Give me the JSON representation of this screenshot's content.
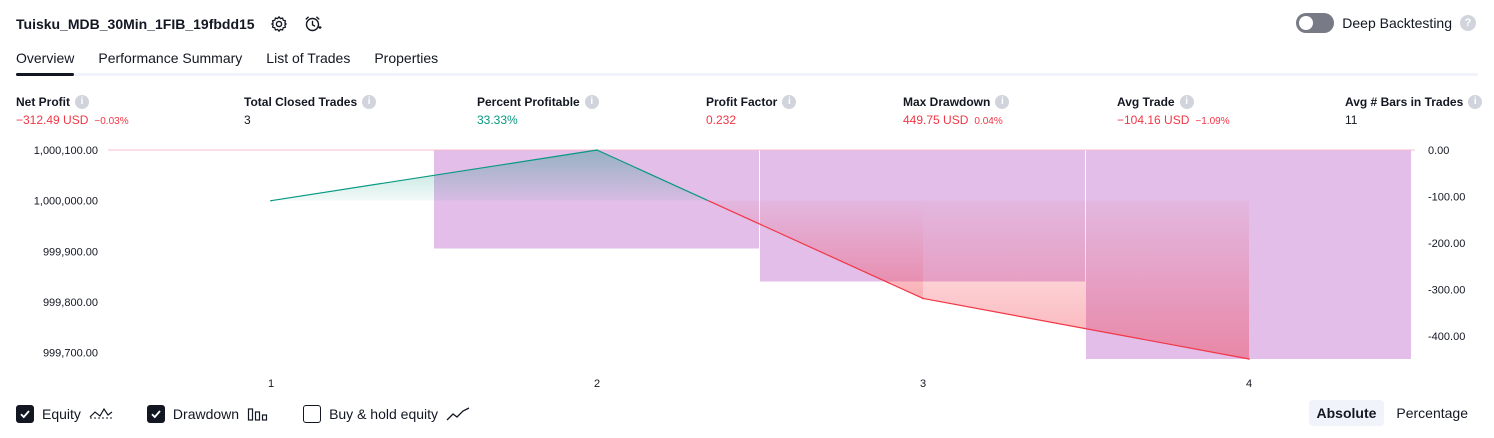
{
  "header": {
    "title": "Tuisku_MDB_30Min_1FIB_19fbdd15",
    "deep_backtesting_label": "Deep Backtesting",
    "deep_backtesting_on": false
  },
  "tabs": [
    {
      "label": "Overview",
      "active": true
    },
    {
      "label": "Performance Summary",
      "active": false
    },
    {
      "label": "List of Trades",
      "active": false
    },
    {
      "label": "Properties",
      "active": false
    }
  ],
  "metrics": {
    "net_profit": {
      "label": "Net Profit",
      "value": "−312.49 USD",
      "pct": "−0.03%"
    },
    "total_closed_trades": {
      "label": "Total Closed Trades",
      "value": "3"
    },
    "percent_profitable": {
      "label": "Percent Profitable",
      "value": "33.33%"
    },
    "profit_factor": {
      "label": "Profit Factor",
      "value": "0.232"
    },
    "max_drawdown": {
      "label": "Max Drawdown",
      "value": "449.75 USD",
      "pct": "0.04%"
    },
    "avg_trade": {
      "label": "Avg Trade",
      "value": "−104.16 USD",
      "pct": "−1.09%"
    },
    "avg_bars": {
      "label": "Avg # Bars in Trades",
      "value": "11"
    }
  },
  "chart_data": {
    "type": "line",
    "x_ticks": [
      "1",
      "2",
      "3",
      "4"
    ],
    "left_axis": {
      "ticks": [
        "1,000,100.00",
        "1,000,000.00",
        "999,900.00",
        "999,800.00",
        "999,700.00"
      ],
      "range": [
        999687.51,
        1000100
      ]
    },
    "right_axis": {
      "ticks": [
        "0.00",
        "-100.00",
        "-200.00",
        "-300.00",
        "-400.00"
      ],
      "range": [
        -449.75,
        0
      ]
    },
    "equity": {
      "name": "Equity",
      "x": [
        1,
        2,
        3,
        4
      ],
      "values": [
        1000000.0,
        1000100.0,
        999807.0,
        999687.51
      ],
      "baseline": 1000000.0,
      "up_color": "#089981",
      "down_color": "#f23645"
    },
    "drawdown": {
      "name": "Drawdown",
      "color": "#ce93d8",
      "bars": [
        {
          "from": 1.5,
          "to": 2.5,
          "value": -212.0
        },
        {
          "from": 2.5,
          "to": 3.5,
          "value": -283.0
        },
        {
          "from": 3.5,
          "to": 4.5,
          "value": -449.75
        }
      ]
    }
  },
  "legend": {
    "equity_label": "Equity",
    "drawdown_label": "Drawdown",
    "buy_hold_label": "Buy & hold equity",
    "equity_checked": true,
    "drawdown_checked": true,
    "buy_hold_checked": false
  },
  "mode": {
    "absolute_label": "Absolute",
    "percentage_label": "Percentage"
  }
}
